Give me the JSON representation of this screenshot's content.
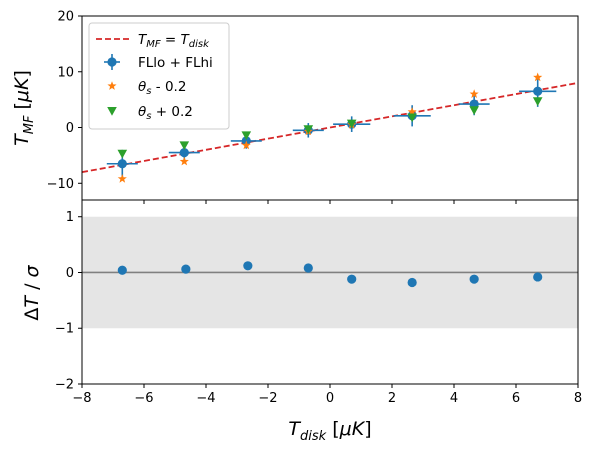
{
  "chart_data": [
    {
      "type": "scatter",
      "panel": "top",
      "xlabel": "T_disk [μK]",
      "ylabel": "T_MF [μK]",
      "xlim": [
        -8,
        8
      ],
      "ylim": [
        -13,
        20
      ],
      "yticks": [
        -10,
        0,
        10,
        20
      ],
      "grid": false,
      "legend": {
        "placement": "top-left",
        "entries": [
          "T_MF = T_disk",
          "FLlo + FLhi",
          "θs - 0.2",
          "θs + 0.2"
        ]
      },
      "reference_line": {
        "name": "T_MF = T_disk",
        "x": [
          -8,
          8
        ],
        "y": [
          -8,
          8
        ],
        "style": "dashed",
        "color": "#d62728"
      },
      "series": [
        {
          "name": "FLlo + FLhi",
          "color": "#1f77b4",
          "marker": "circle",
          "x": [
            -6.7,
            -4.7,
            -2.7,
            -0.7,
            0.7,
            2.65,
            4.65,
            6.7
          ],
          "y": [
            -6.5,
            -4.5,
            -2.4,
            -0.5,
            0.6,
            2.1,
            4.2,
            6.5
          ],
          "xerr": [
            0.5,
            0.5,
            0.5,
            0.5,
            0.6,
            0.6,
            0.5,
            0.6
          ],
          "yerr": [
            2.5,
            1.4,
            1.4,
            1.3,
            1.4,
            1.9,
            2.0,
            2.8
          ]
        },
        {
          "name": "θs - 0.2",
          "color": "#ff7f0e",
          "marker": "star",
          "x": [
            -6.7,
            -4.7,
            -2.7,
            -0.7,
            0.7,
            2.65,
            4.65,
            6.7
          ],
          "y": [
            -9.2,
            -6.1,
            -3.2,
            -0.7,
            0.5,
            2.8,
            6.0,
            9.0
          ]
        },
        {
          "name": "θs + 0.2",
          "color": "#2ca02c",
          "marker": "triangle-down",
          "x": [
            -6.7,
            -4.7,
            -2.7,
            -0.7,
            0.7,
            2.65,
            4.65,
            6.7
          ],
          "y": [
            -4.7,
            -3.2,
            -1.4,
            -0.3,
            0.7,
            1.8,
            3.1,
            4.7
          ]
        }
      ]
    },
    {
      "type": "scatter",
      "panel": "bottom",
      "xlabel": "T_disk [μK]",
      "ylabel": "ΔT / σ",
      "xlim": [
        -8,
        8
      ],
      "ylim": [
        -2,
        1.3
      ],
      "xticks": [
        -8,
        -6,
        -4,
        -2,
        0,
        2,
        4,
        6,
        8
      ],
      "yticks": [
        -2,
        -1,
        0,
        1
      ],
      "band": {
        "from": -1,
        "to": 1,
        "color": "#e5e5e5"
      },
      "zero_line_color": "#808080",
      "series": [
        {
          "name": "",
          "color": "#1f77b4",
          "marker": "circle",
          "x": [
            -6.7,
            -4.65,
            -2.65,
            -0.7,
            0.7,
            2.65,
            4.65,
            6.7
          ],
          "y": [
            0.04,
            0.06,
            0.12,
            0.08,
            -0.12,
            -0.18,
            -0.12,
            -0.08
          ]
        }
      ]
    }
  ]
}
